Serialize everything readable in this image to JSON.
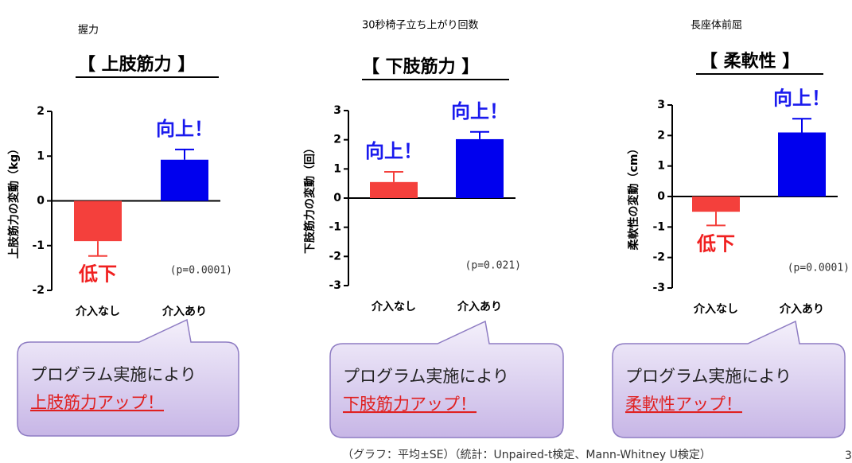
{
  "chart_data": [
    {
      "type": "bar",
      "subtitle": "握力",
      "title": "【 上肢筋力 】",
      "ylabel": "上肢筋力の変動（kg）",
      "categories": [
        "介入なし",
        "介入あり"
      ],
      "values": [
        -0.9,
        0.92
      ],
      "errors": [
        0.33,
        0.23
      ],
      "colors": [
        "#f4403c",
        "#0000ee"
      ],
      "ylim": [
        -2,
        2
      ],
      "yticks": [
        -2,
        -1,
        0,
        1,
        2
      ],
      "up_label": "向上！",
      "down_label": "低下",
      "p_label": "(p=0.0001)"
    },
    {
      "type": "bar",
      "subtitle": "30秒椅子立ち上がり回数",
      "title": "【 下肢筋力 】",
      "ylabel": "下肢筋力の変動（回）",
      "categories": [
        "介入なし",
        "介入あり"
      ],
      "values": [
        0.55,
        2.02
      ],
      "errors": [
        0.35,
        0.25
      ],
      "colors": [
        "#f4403c",
        "#0000ee"
      ],
      "ylim": [
        -3,
        3
      ],
      "yticks": [
        -3,
        -2,
        -1,
        0,
        1,
        2,
        3
      ],
      "up_label": "向上！",
      "p_label": "(p=0.021)"
    },
    {
      "type": "bar",
      "subtitle": "長座体前屈",
      "title": "【 柔軟性 】",
      "ylabel": "柔軟性の変動（cm）",
      "categories": [
        "介入なし",
        "介入あり"
      ],
      "values": [
        -0.5,
        2.1
      ],
      "errors": [
        0.45,
        0.45
      ],
      "colors": [
        "#f4403c",
        "#0000ee"
      ],
      "ylim": [
        -3,
        3
      ],
      "yticks": [
        -3,
        -2,
        -1,
        0,
        1,
        2,
        3
      ],
      "up_label": "向上！",
      "down_label": "低下",
      "p_label": "(p=0.0001)"
    }
  ],
  "callouts": [
    {
      "line1": "プログラム実施により",
      "line2": "上肢筋力アップ！"
    },
    {
      "line1": "プログラム実施により",
      "line2": "下肢筋力アップ！"
    },
    {
      "line1": "プログラム実施により",
      "line2": "柔軟性アップ！"
    }
  ],
  "footnote": "（グラフ：平均±SE）（統計：Unpaired-t検定、Mann-Whitney U検定）",
  "page_number": "3"
}
